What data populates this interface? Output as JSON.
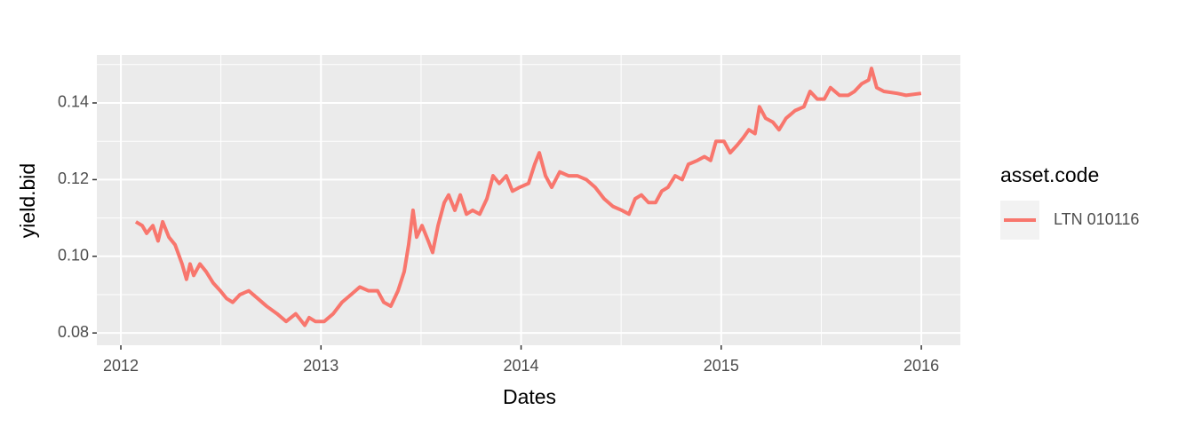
{
  "chart_data": {
    "type": "line",
    "x_label": "Dates",
    "y_label": "yield.bid",
    "legend_title": "asset.code",
    "legend_position": "right",
    "x": [
      2012.075,
      2012.107,
      2012.129,
      2012.16,
      2012.186,
      2012.209,
      2012.24,
      2012.271,
      2012.306,
      2012.328,
      2012.346,
      2012.364,
      2012.395,
      2012.426,
      2012.462,
      2012.497,
      2012.528,
      2012.559,
      2012.595,
      2012.639,
      2012.684,
      2012.728,
      2012.781,
      2012.826,
      2012.874,
      2012.919,
      2012.941,
      2012.972,
      2013.016,
      2013.061,
      2013.105,
      2013.15,
      2013.194,
      2013.238,
      2013.283,
      2013.314,
      2013.349,
      2013.385,
      2013.416,
      2013.438,
      2013.46,
      2013.478,
      2013.505,
      2013.536,
      2013.558,
      2013.585,
      2013.616,
      2013.638,
      2013.669,
      2013.696,
      2013.727,
      2013.758,
      2013.793,
      2013.829,
      2013.86,
      2013.891,
      2013.926,
      2013.957,
      2013.993,
      2014.037,
      2014.068,
      2014.091,
      2014.122,
      2014.153,
      2014.193,
      2014.237,
      2014.281,
      2014.326,
      2014.37,
      2014.415,
      2014.459,
      2014.503,
      2014.539,
      2014.57,
      2014.601,
      2014.637,
      2014.672,
      2014.703,
      2014.734,
      2014.77,
      2014.805,
      2014.836,
      2014.881,
      2014.916,
      2014.947,
      2014.974,
      2015.014,
      2015.045,
      2015.08,
      2015.111,
      2015.138,
      2015.169,
      2015.191,
      2015.222,
      2015.258,
      2015.289,
      2015.324,
      2015.369,
      2015.413,
      2015.444,
      2015.48,
      2015.515,
      2015.546,
      2015.591,
      2015.635,
      2015.666,
      2015.702,
      2015.737,
      2015.751,
      2015.777,
      2015.813,
      2015.879,
      2015.924,
      2015.999
    ],
    "series": [
      {
        "name": "LTN 010116",
        "color": "#F8766D",
        "values": [
          0.109,
          0.108,
          0.106,
          0.108,
          0.104,
          0.109,
          0.105,
          0.103,
          0.098,
          0.094,
          0.098,
          0.095,
          0.098,
          0.096,
          0.093,
          0.091,
          0.089,
          0.088,
          0.09,
          0.091,
          0.089,
          0.087,
          0.085,
          0.083,
          0.085,
          0.082,
          0.084,
          0.083,
          0.083,
          0.085,
          0.088,
          0.09,
          0.092,
          0.091,
          0.091,
          0.088,
          0.087,
          0.091,
          0.096,
          0.103,
          0.112,
          0.105,
          0.108,
          0.104,
          0.101,
          0.108,
          0.114,
          0.116,
          0.112,
          0.116,
          0.111,
          0.112,
          0.111,
          0.115,
          0.121,
          0.119,
          0.121,
          0.117,
          0.118,
          0.119,
          0.124,
          0.127,
          0.121,
          0.118,
          0.122,
          0.121,
          0.121,
          0.12,
          0.118,
          0.115,
          0.113,
          0.112,
          0.111,
          0.115,
          0.116,
          0.114,
          0.114,
          0.117,
          0.118,
          0.121,
          0.12,
          0.124,
          0.125,
          0.126,
          0.125,
          0.13,
          0.13,
          0.127,
          0.129,
          0.131,
          0.133,
          0.132,
          0.139,
          0.136,
          0.135,
          0.133,
          0.136,
          0.138,
          0.139,
          0.143,
          0.141,
          0.141,
          0.144,
          0.142,
          0.142,
          0.143,
          0.145,
          0.146,
          0.149,
          0.144,
          0.143,
          0.1425,
          0.142,
          0.1425
        ]
      }
    ],
    "xlim": [
      2011.88,
      2016.195
    ],
    "xticks": [
      2012,
      2013,
      2014,
      2015,
      2016
    ],
    "ylim": [
      0.0768,
      0.1525
    ],
    "yticks": [
      0.08,
      {
        "value": 0.1,
        "label": "0.10"
      },
      0.12,
      0.14
    ],
    "grid": true,
    "minor_grid": true
  }
}
